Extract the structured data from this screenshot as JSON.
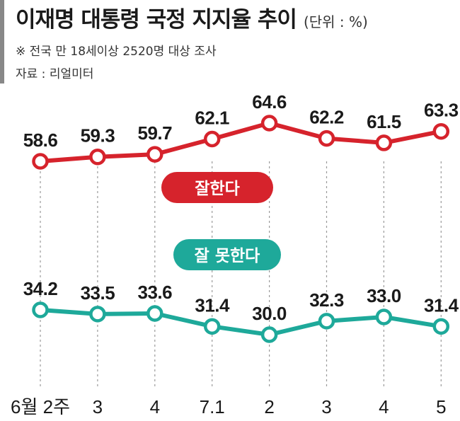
{
  "header": {
    "title": "이재명 대통령 국정 지지율 추이",
    "unit": "(단위 : %)",
    "note": "※ 전국 만 18세이상 2520명 대상 조사",
    "source": "자료 : 리얼미터"
  },
  "colors": {
    "positive": "#d6232c",
    "negative": "#1ea99a",
    "gridline": "#9a9a9a"
  },
  "chart_data": {
    "type": "line",
    "categories": [
      "6월 2주",
      "3",
      "4",
      "7.1",
      "2",
      "3",
      "4",
      "5"
    ],
    "series": [
      {
        "name": "잘한다",
        "values": [
          58.6,
          59.3,
          59.7,
          62.1,
          64.6,
          62.2,
          61.5,
          63.3
        ],
        "value_labels": [
          "58.6",
          "59.3",
          "59.7",
          "62.1",
          "64.6",
          "62.2",
          "61.5",
          "63.3"
        ]
      },
      {
        "name": "잘 못한다",
        "values": [
          34.2,
          33.5,
          33.6,
          31.4,
          30.0,
          32.3,
          33.0,
          31.4
        ],
        "value_labels": [
          "34.2",
          "33.5",
          "33.6",
          "31.4",
          "30.0",
          "32.3",
          "33.0",
          "31.4"
        ]
      }
    ],
    "grid": "vertical dashed",
    "legend": "inline labels"
  }
}
